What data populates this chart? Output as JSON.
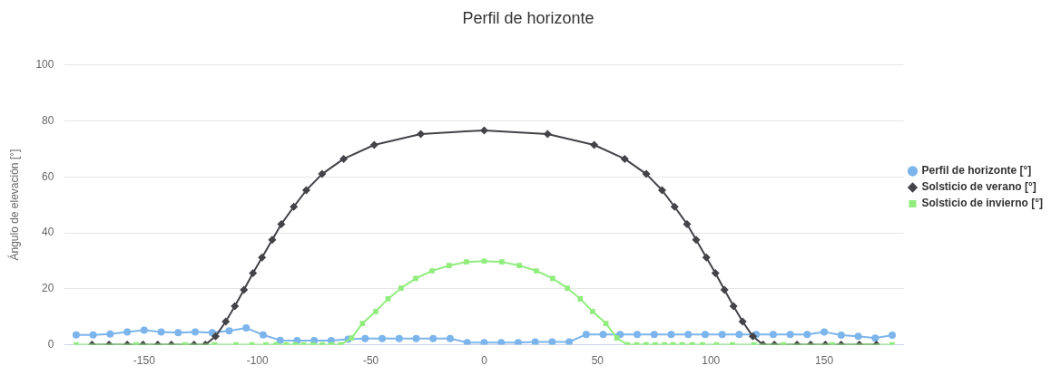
{
  "chart_data": {
    "type": "line",
    "title": "Perfil de horizonte",
    "ylabel": "Ángulo de elevación [°]",
    "xlim": [
      -185,
      185
    ],
    "xticks": [
      -150,
      -100,
      -50,
      0,
      50,
      100,
      150
    ],
    "ylim": [
      0,
      100
    ],
    "yticks": [
      0,
      20,
      40,
      60,
      80,
      100
    ],
    "grid": "y",
    "legend": "right",
    "line_style": "solid",
    "series": [
      {
        "name": "Perfil de horizonte [°]",
        "color": "#7cb5ec",
        "marker": "circle",
        "x": [
          -180,
          -172.5,
          -165,
          -157.5,
          -150,
          -142.5,
          -135,
          -127.5,
          -120,
          -112.5,
          -105,
          -97.5,
          -90,
          -82.5,
          -75,
          -67.5,
          -60,
          -52.5,
          -45,
          -37.5,
          -30,
          -22.5,
          -15,
          -7.5,
          0,
          7.5,
          15,
          22.5,
          30,
          37.5,
          45,
          52.5,
          60,
          67.5,
          75,
          82.5,
          90,
          97.5,
          105,
          112.5,
          120,
          127.5,
          135,
          142.5,
          150,
          157.5,
          165,
          172.5,
          180
        ],
        "values": [
          3.5,
          3.5,
          3.8,
          4.6,
          5.2,
          4.6,
          4.3,
          4.6,
          4.3,
          5.0,
          6.0,
          3.5,
          1.6,
          1.5,
          1.5,
          1.5,
          2.0,
          2.2,
          2.2,
          2.2,
          2.2,
          2.2,
          2.2,
          0.8,
          0.8,
          0.8,
          0.8,
          1.0,
          1.0,
          1.0,
          3.7,
          3.7,
          3.7,
          3.7,
          3.7,
          3.7,
          3.7,
          3.7,
          3.7,
          3.7,
          3.7,
          3.7,
          3.7,
          3.7,
          4.6,
          3.4,
          3.0,
          2.4,
          3.4
        ]
      },
      {
        "name": "Solsticio de verano [°]",
        "color": "#434348",
        "marker": "diamond",
        "x": [
          -173,
          -165.5,
          -157.5,
          -150.5,
          -144,
          -138,
          -128,
          -123,
          -118.5,
          -114,
          -110,
          -106,
          -102,
          -98,
          -93.5,
          -89.5,
          -84,
          -78.5,
          -71.5,
          -62,
          -48.5,
          -28,
          0,
          28,
          48.5,
          62,
          71.5,
          78.5,
          84,
          89.5,
          93.5,
          98,
          102,
          106,
          110,
          114,
          118.5,
          123,
          128,
          138,
          144,
          150.5,
          157.5,
          165.5,
          173
        ],
        "values": [
          0,
          0,
          0,
          0,
          0,
          0,
          0,
          0,
          3,
          8.3,
          13.8,
          19.6,
          25.6,
          31.2,
          37.5,
          43.1,
          49.3,
          55.2,
          61,
          66.4,
          71.4,
          75.3,
          76.6,
          75.3,
          71.4,
          66.4,
          61,
          55.2,
          49.3,
          43.1,
          37.5,
          31.2,
          25.6,
          19.6,
          13.8,
          8.3,
          3,
          0,
          0,
          0,
          0,
          0,
          0,
          0,
          0
        ]
      },
      {
        "name": "Solsticio de invierno [°]",
        "color": "#90ed7d",
        "marker": "square",
        "x": [
          -180,
          -153.5,
          -132,
          -119,
          -109.5,
          -102.5,
          -96.3,
          -91.8,
          -87.3,
          -83.3,
          -79.6,
          -75.5,
          -71.4,
          -67.3,
          -63.3,
          -58.5,
          -53.7,
          -47.8,
          -42.4,
          -36.7,
          -30.2,
          -23,
          -15.5,
          -7.8,
          0,
          7.8,
          15.5,
          23,
          30.2,
          36.7,
          42.4,
          47.8,
          53.7,
          58.5,
          63.3,
          67.3,
          71.4,
          75.5,
          79.6,
          83.3,
          87.3,
          91.8,
          96.3,
          102.5,
          109.5,
          119,
          132,
          153.5,
          180
        ],
        "values": [
          0,
          0,
          0,
          0,
          0,
          0,
          0,
          0,
          0,
          0,
          0,
          0,
          0,
          0,
          0,
          2.4,
          7.6,
          11.9,
          16.4,
          20.2,
          23.7,
          26.4,
          28.3,
          29.6,
          29.9,
          29.6,
          28.3,
          26.4,
          23.7,
          20.2,
          16.4,
          11.9,
          7.6,
          2.4,
          0,
          0,
          0,
          0,
          0,
          0,
          0,
          0,
          0,
          0,
          0,
          0,
          0,
          0,
          0
        ]
      }
    ]
  }
}
